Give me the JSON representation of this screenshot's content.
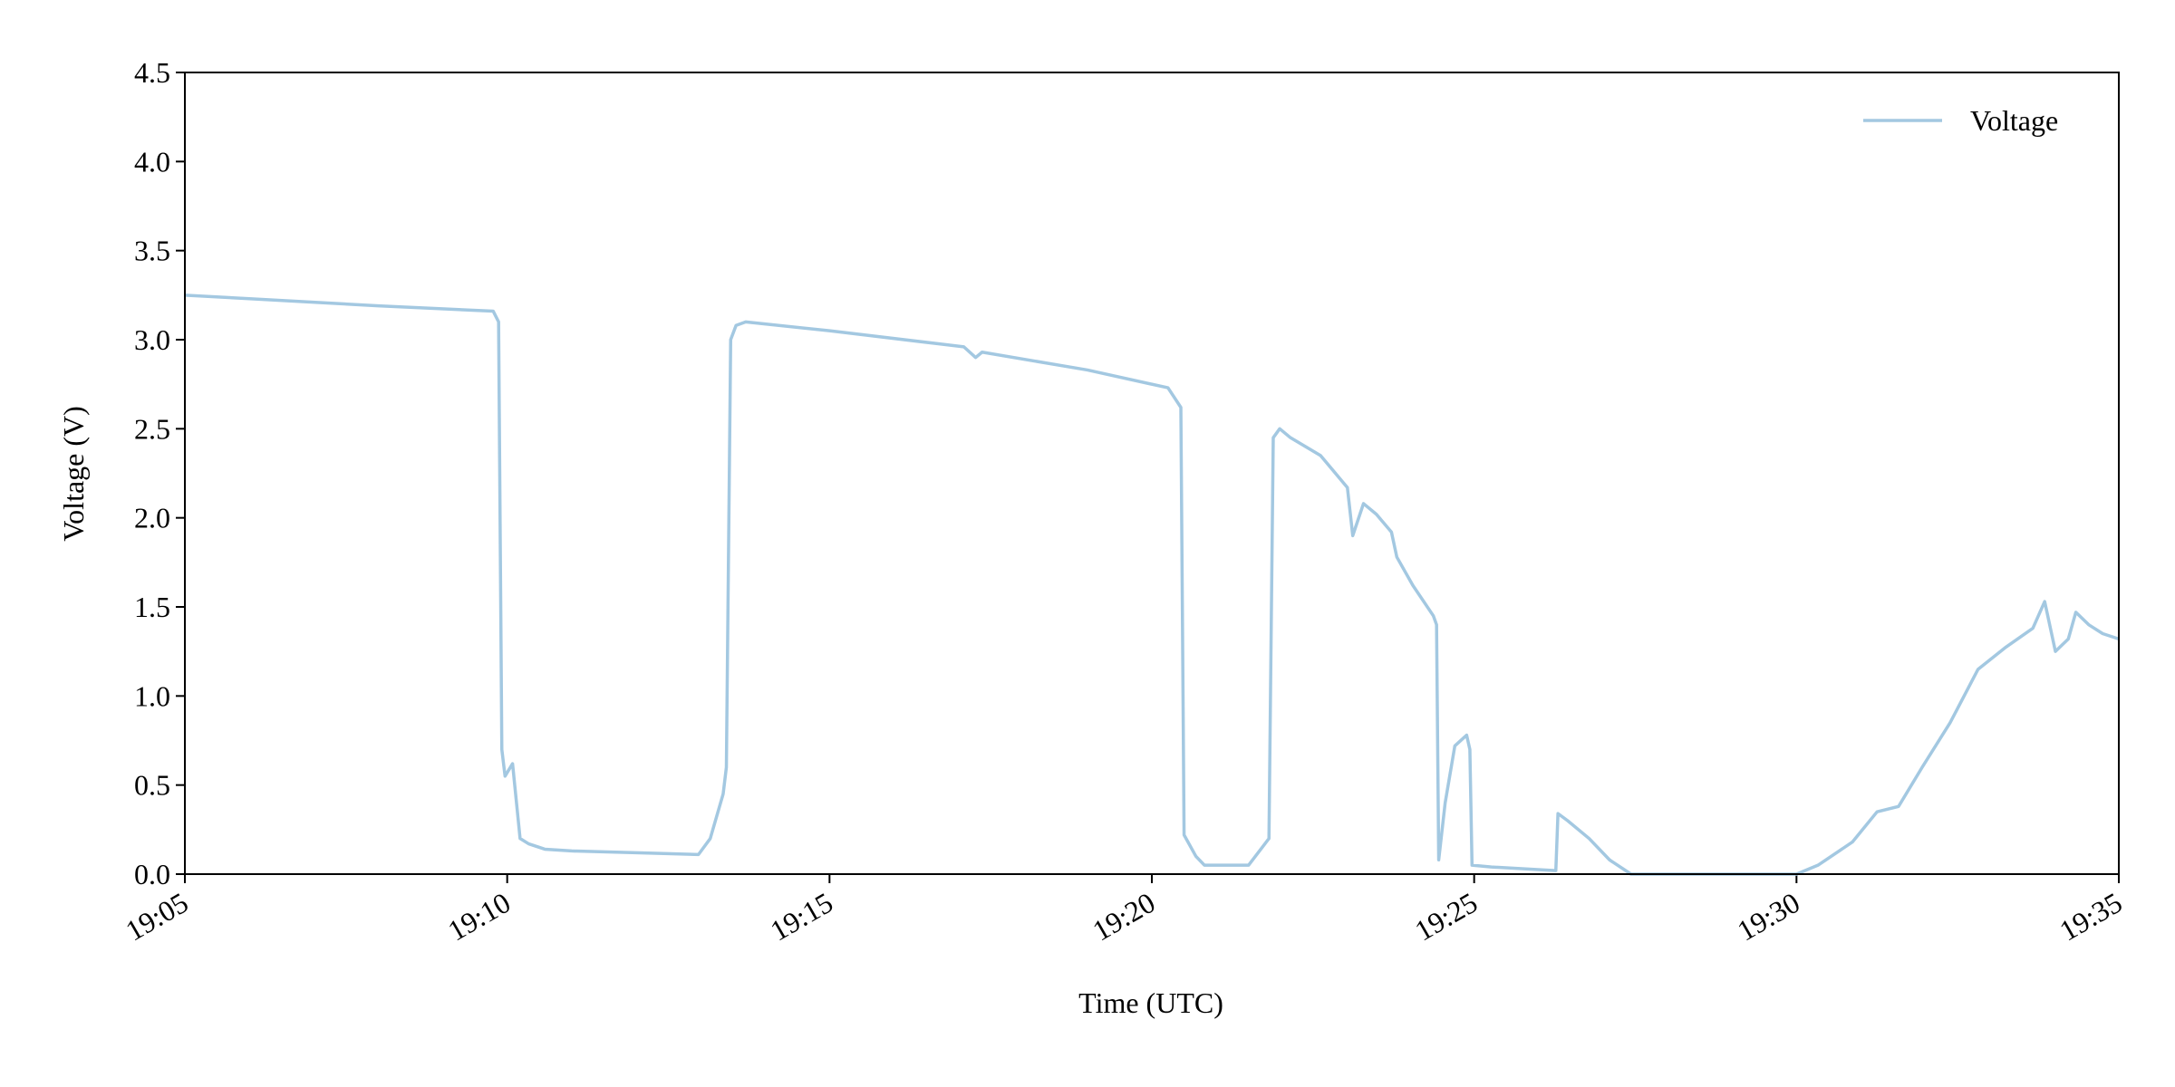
{
  "chart_data": {
    "type": "line",
    "xlabel": "Time (UTC)",
    "ylabel": "Voltage (V)",
    "xlim": [
      "19:05",
      "19:35"
    ],
    "xticks": [
      "19:05",
      "19:10",
      "19:15",
      "19:20",
      "19:25",
      "19:30",
      "19:35"
    ],
    "ylim": [
      0,
      4.5
    ],
    "yticks": [
      {
        "value": 0,
        "label": "0.0"
      },
      {
        "value": 0.5,
        "label": "0.5"
      },
      {
        "value": 1,
        "label": "1.0"
      },
      {
        "value": 1.5,
        "label": "1.5"
      },
      {
        "value": 2,
        "label": "2.0"
      },
      {
        "value": 2.5,
        "label": "2.5"
      },
      {
        "value": 3,
        "label": "3.0"
      },
      {
        "value": 3.5,
        "label": "3.5"
      },
      {
        "value": 4,
        "label": "4.0"
      },
      {
        "value": 4.5,
        "label": "4.5"
      }
    ],
    "legend": "upper right",
    "x": [
      "19:05:00",
      "19:06:00",
      "19:08:00",
      "19:09:47",
      "19:09:52",
      "19:09:55",
      "19:09:58",
      "19:10:05",
      "19:10:12",
      "19:10:20",
      "19:10:35",
      "19:11:00",
      "19:12:00",
      "19:12:58",
      "19:13:09",
      "19:13:21",
      "19:13:24",
      "19:13:28",
      "19:13:33",
      "19:13:42",
      "19:15:00",
      "19:17:05",
      "19:17:16",
      "19:17:22",
      "19:19:00",
      "19:20:15",
      "19:20:27",
      "19:20:30",
      "19:20:41",
      "19:20:49",
      "19:21:30",
      "19:21:49",
      "19:21:53",
      "19:21:59",
      "19:22:09",
      "19:22:37",
      "19:23:02",
      "19:23:07",
      "19:23:17",
      "19:23:29",
      "19:23:43",
      "19:23:48",
      "19:24:03",
      "19:24:22",
      "19:24:25",
      "19:24:27",
      "19:24:33",
      "19:24:42",
      "19:24:53",
      "19:24:56",
      "19:24:58",
      "19:25:16",
      "19:26:16",
      "19:26:18",
      "19:26:27",
      "19:26:47",
      "19:27:06",
      "19:27:26",
      "19:30:00",
      "19:30:20",
      "19:30:52",
      "19:31:15",
      "19:31:35",
      "19:31:57",
      "19:32:23",
      "19:32:49",
      "19:33:14",
      "19:33:40",
      "19:33:51",
      "19:34:01",
      "19:34:13",
      "19:34:20",
      "19:34:32",
      "19:34:45",
      "19:35:00"
    ],
    "series": [
      {
        "name": "Voltage",
        "color": "#a3c8e1",
        "values": [
          3.25,
          3.23,
          3.19,
          3.16,
          3.1,
          0.7,
          0.55,
          0.62,
          0.2,
          0.17,
          0.14,
          0.13,
          0.12,
          0.11,
          0.2,
          0.45,
          0.6,
          3.0,
          3.08,
          3.1,
          3.05,
          2.96,
          2.9,
          2.93,
          2.83,
          2.73,
          2.62,
          0.22,
          0.1,
          0.05,
          0.05,
          0.2,
          2.45,
          2.5,
          2.45,
          2.35,
          2.17,
          1.9,
          2.08,
          2.02,
          1.92,
          1.78,
          1.62,
          1.45,
          1.4,
          0.08,
          0.4,
          0.72,
          0.78,
          0.7,
          0.05,
          0.04,
          0.02,
          0.34,
          0.3,
          0.2,
          0.08,
          0.0,
          0.0,
          0.05,
          0.18,
          0.35,
          0.38,
          0.6,
          0.85,
          1.15,
          1.27,
          1.38,
          1.53,
          1.25,
          1.32,
          1.47,
          1.4,
          1.35,
          1.32
        ]
      }
    ]
  }
}
